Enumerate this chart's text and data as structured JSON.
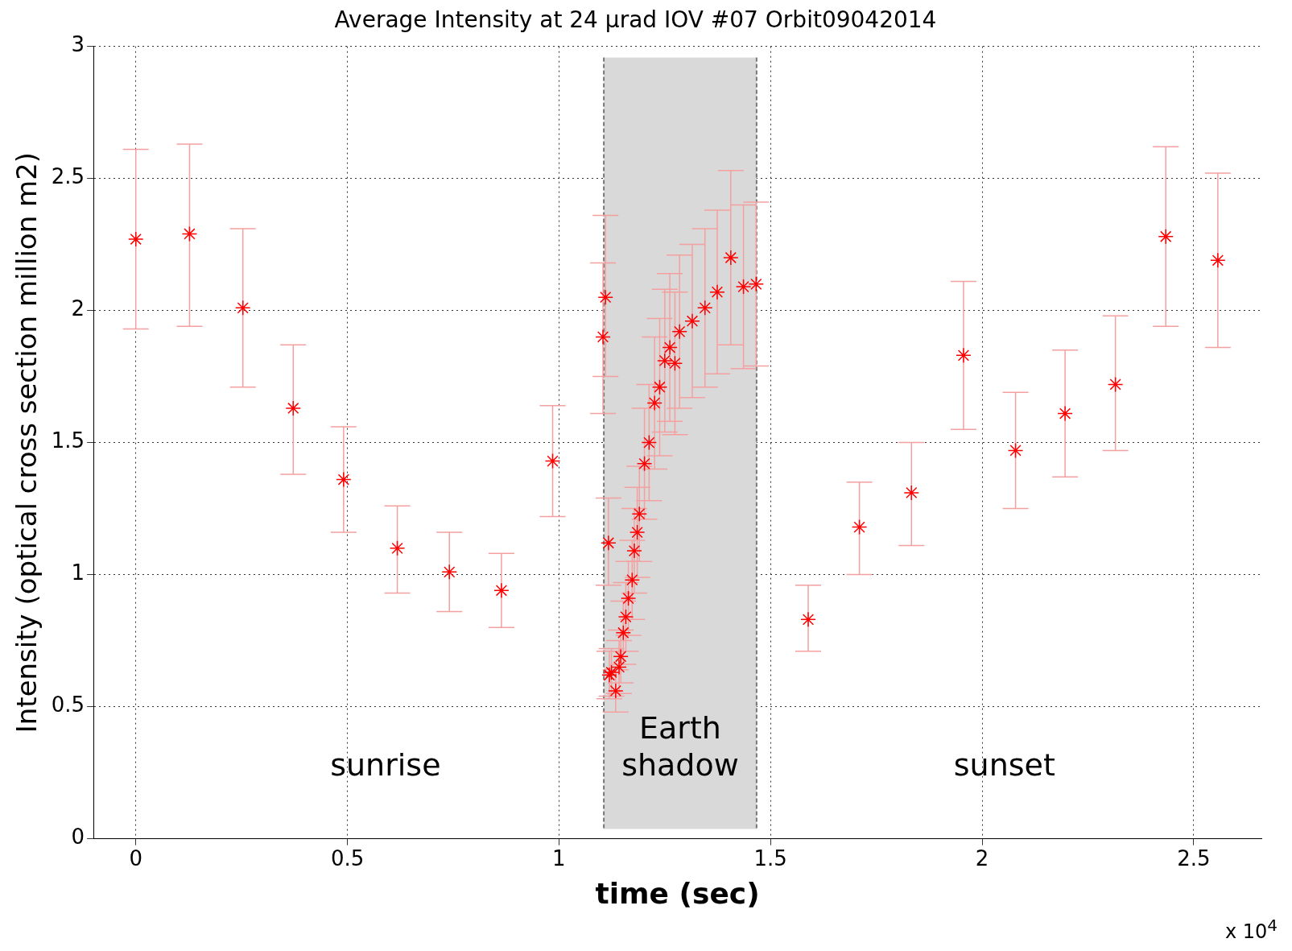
{
  "chart_data": {
    "type": "scatter",
    "title": "Average Intensity at 24 µrad IOV #07 Orbit09042014",
    "xlabel": "time (sec)",
    "ylabel": "Intensity (optical cross section million m2)",
    "x": [
      0,
      0.127,
      0.253,
      0.372,
      0.491,
      0.618,
      0.741,
      0.864,
      0.985,
      1.104,
      1.11,
      1.117,
      1.119,
      1.124,
      1.134,
      1.142,
      1.146,
      1.152,
      1.158,
      1.164,
      1.173,
      1.178,
      1.185,
      1.19,
      1.202,
      1.213,
      1.226,
      1.238,
      1.25,
      1.262,
      1.274,
      1.285,
      1.315,
      1.345,
      1.374,
      1.406,
      1.436,
      1.466,
      1.589,
      1.71,
      1.833,
      1.956,
      2.079,
      2.196,
      2.315,
      2.434,
      2.557
    ],
    "series": [
      {
        "color": "#ff0000",
        "values": [
          2.27,
          2.29,
          2.01,
          1.63,
          1.36,
          1.1,
          1.01,
          0.94,
          1.43,
          1.9,
          2.05,
          1.12,
          0.62,
          0.63,
          0.56,
          0.65,
          0.69,
          0.78,
          0.84,
          0.91,
          0.98,
          1.09,
          1.16,
          1.23,
          1.42,
          1.5,
          1.65,
          1.71,
          1.81,
          1.86,
          1.8,
          1.92,
          1.96,
          2.01,
          2.07,
          2.2,
          2.09,
          2.1,
          0.83,
          1.18,
          1.31,
          1.83,
          1.47,
          1.61,
          1.72,
          2.28,
          2.19
        ],
        "errors": [
          [
            1.93,
            2.61
          ],
          [
            1.94,
            2.63
          ],
          [
            1.71,
            2.31
          ],
          [
            1.38,
            1.87
          ],
          [
            1.16,
            1.56
          ],
          [
            0.93,
            1.26
          ],
          [
            0.86,
            1.16
          ],
          [
            0.8,
            1.08
          ],
          [
            1.22,
            1.64
          ],
          [
            1.61,
            2.18
          ],
          [
            1.75,
            2.36
          ],
          [
            0.96,
            1.29
          ],
          0.09,
          0.09,
          0.08,
          0.1,
          0.1,
          0.12,
          0.13,
          0.14,
          0.15,
          0.16,
          0.17,
          0.18,
          0.21,
          0.22,
          0.25,
          0.26,
          0.27,
          0.28,
          0.27,
          0.29,
          0.29,
          0.3,
          0.31,
          0.33,
          0.31,
          0.31,
          [
            0.71,
            0.96
          ],
          [
            1.0,
            1.35
          ],
          [
            1.11,
            1.5
          ],
          [
            1.55,
            2.11
          ],
          [
            1.25,
            1.69
          ],
          [
            1.37,
            1.85
          ],
          [
            1.47,
            1.98
          ],
          [
            1.94,
            2.62
          ],
          [
            1.86,
            2.52
          ]
        ]
      }
    ],
    "xlim": [
      -0.1,
      2.66
    ],
    "xticks": [
      0,
      0.5,
      1,
      1.5,
      2,
      2.5
    ],
    "ylim": [
      0,
      3
    ],
    "yticks": [
      0,
      0.5,
      1,
      1.5,
      2,
      2.5,
      3
    ],
    "grid": true,
    "marker": "cross",
    "ref_lines": [
      {
        "axis": "x",
        "value": 1.106,
        "color": "#777777",
        "line_style": "dashed"
      },
      {
        "axis": "x",
        "value": 1.467,
        "color": "#777777",
        "line_style": "dashed"
      }
    ],
    "bands": [
      {
        "axis": "x",
        "from": 1.106,
        "to": 1.467,
        "label": "Earth shadow",
        "color": "#d9d9d9"
      }
    ],
    "annotations": [
      "sunrise",
      "sunset",
      "x 10$^{4}$"
    ]
  }
}
